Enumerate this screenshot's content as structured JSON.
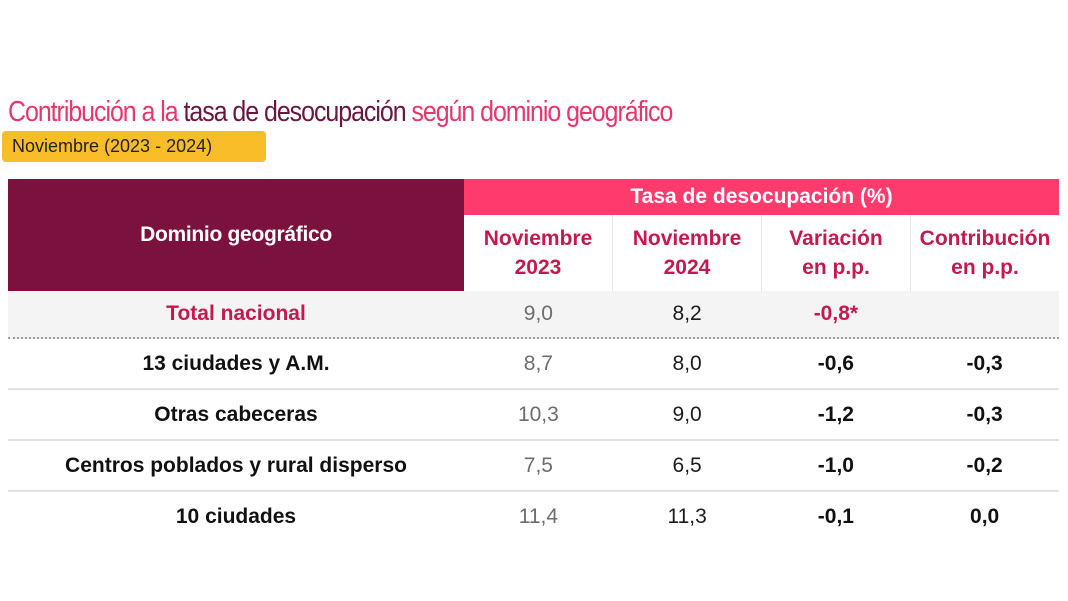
{
  "title": {
    "part1": "Contribución a la ",
    "part2": "tasa de desocupación",
    "part3": " según dominio geográfico"
  },
  "subtitle_badge": "Noviembre (2023 - 2024)",
  "colors": {
    "pink": "#e8356d",
    "maroon": "#7b123e",
    "header_pink": "#ff3b6e",
    "badge_yellow": "#f9bd2a",
    "accent_text": "#c4194f"
  },
  "table": {
    "row_header": "Dominio geográfico",
    "group_header": "Tasa de desocupación (%)",
    "columns": [
      {
        "line1": "Noviembre",
        "line2": "2023"
      },
      {
        "line1": "Noviembre",
        "line2": "2024"
      },
      {
        "line1": "Variación",
        "line2": "en p.p."
      },
      {
        "line1": "Contribución",
        "line2": "en p.p."
      }
    ],
    "rows": [
      {
        "name": "Total nacional",
        "nov2023": "9,0",
        "nov2024": "8,2",
        "variacion": "-0,8*",
        "contribucion": ""
      },
      {
        "name": "13 ciudades y A.M.",
        "nov2023": "8,7",
        "nov2024": "8,0",
        "variacion": "-0,6",
        "contribucion": "-0,3"
      },
      {
        "name": "Otras cabeceras",
        "nov2023": "10,3",
        "nov2024": "9,0",
        "variacion": "-1,2",
        "contribucion": "-0,3"
      },
      {
        "name": "Centros poblados y rural disperso",
        "nov2023": "7,5",
        "nov2024": "6,5",
        "variacion": "-1,0",
        "contribucion": "-0,2"
      },
      {
        "name": "10 ciudades",
        "nov2023": "11,4",
        "nov2024": "11,3",
        "variacion": "-0,1",
        "contribucion": "0,0"
      }
    ]
  }
}
